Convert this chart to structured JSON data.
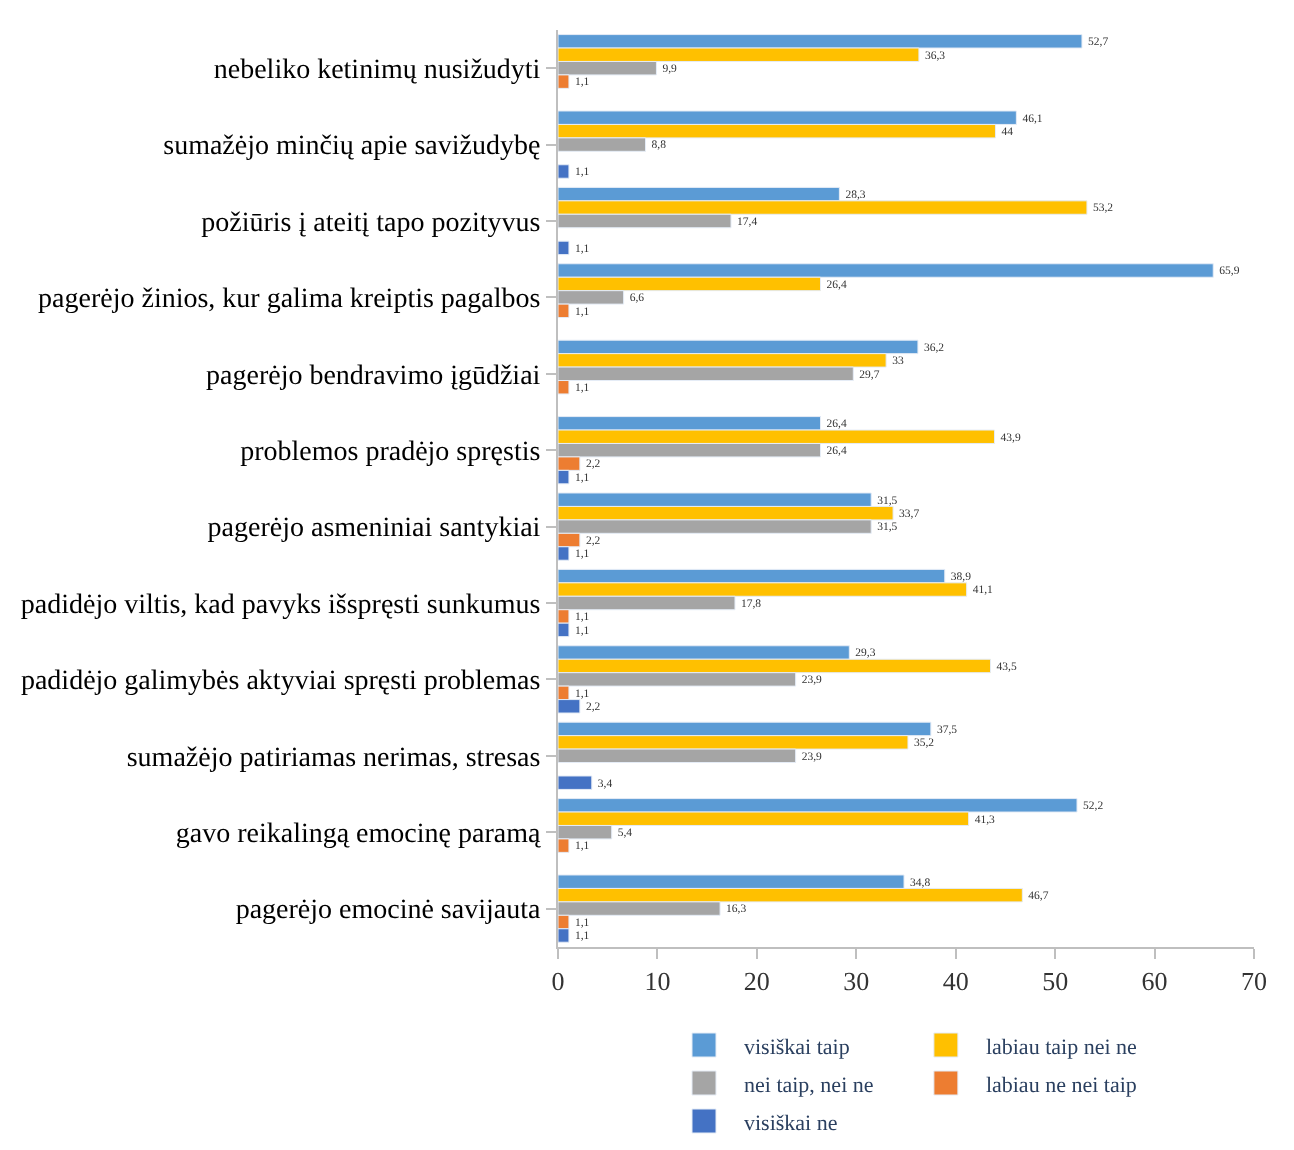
{
  "chart_data": {
    "type": "bar",
    "orientation": "horizontal",
    "categories": [
      "nebeliko ketinimų nusižudyti",
      "sumažėjo minčių apie savižudybę",
      "požiūris į ateitį tapo pozityvus",
      "pagerėjo žinios, kur galima kreiptis pagalbos",
      "pagerėjo bendravimo įgūdžiai",
      "problemos pradėjo spręstis",
      "pagerėjo asmeniniai santykiai",
      "padidėjo viltis, kad pavyks išspręsti sunkumus",
      "padidėjo galimybės aktyviai spręsti problemas",
      "sumažėjo patiriamas nerimas, stresas",
      "gavo reikalingą emocinę paramą",
      "pagerėjo emocinė savijauta"
    ],
    "series": [
      {
        "name": "visiškai taip",
        "color": "#5b9bd5",
        "values": [
          52.7,
          46.1,
          28.3,
          65.9,
          36.2,
          26.4,
          31.5,
          38.9,
          29.3,
          37.5,
          52.2,
          34.8
        ],
        "value_labels": [
          "52,7",
          "46,1",
          "28,3",
          "65,9",
          "36,2",
          "26,4",
          "31,5",
          "38,9",
          "29,3",
          "37,5",
          "52,2",
          "34,8"
        ]
      },
      {
        "name": "labiau taip nei ne",
        "color": "#ffc000",
        "values": [
          36.3,
          44,
          53.2,
          26.4,
          33,
          43.9,
          33.7,
          41.1,
          43.5,
          35.2,
          41.3,
          46.7
        ],
        "value_labels": [
          "36,3",
          "44",
          "53,2",
          "26,4",
          "33",
          "43,9",
          "33,7",
          "41,1",
          "43,5",
          "35,2",
          "41,3",
          "46,7"
        ]
      },
      {
        "name": "nei taip, nei ne",
        "color": "#a5a5a5",
        "values": [
          9.9,
          8.8,
          17.4,
          6.6,
          29.7,
          26.4,
          31.5,
          17.8,
          23.9,
          23.9,
          5.4,
          16.3
        ],
        "value_labels": [
          "9,9",
          "8,8",
          "17,4",
          "6,6",
          "29,7",
          "26,4",
          "31,5",
          "17,8",
          "23,9",
          "23,9",
          "5,4",
          "16,3"
        ]
      },
      {
        "name": "labiau ne nei taip",
        "color": "#ed7d31",
        "values": [
          1.1,
          null,
          null,
          1.1,
          1.1,
          2.2,
          2.2,
          1.1,
          1.1,
          null,
          1.1,
          1.1
        ],
        "value_labels": [
          "1,1",
          null,
          null,
          "1,1",
          "1,1",
          "2,2",
          "2,2",
          "1,1",
          "1,1",
          null,
          "1,1",
          "1,1"
        ]
      },
      {
        "name": "visiškai ne",
        "color": "#4472c4",
        "values": [
          null,
          1.1,
          1.1,
          null,
          null,
          1.1,
          1.1,
          1.1,
          2.2,
          3.4,
          null,
          1.1
        ],
        "value_labels": [
          null,
          "1,1",
          "1,1",
          null,
          null,
          "1,1",
          "1,1",
          "1,1",
          "2,2",
          "3,4",
          null,
          "1,1"
        ]
      }
    ],
    "xlim": [
      0,
      70
    ],
    "xticks": [
      0,
      10,
      20,
      30,
      40,
      50,
      60,
      70
    ],
    "legend": "bottom"
  }
}
